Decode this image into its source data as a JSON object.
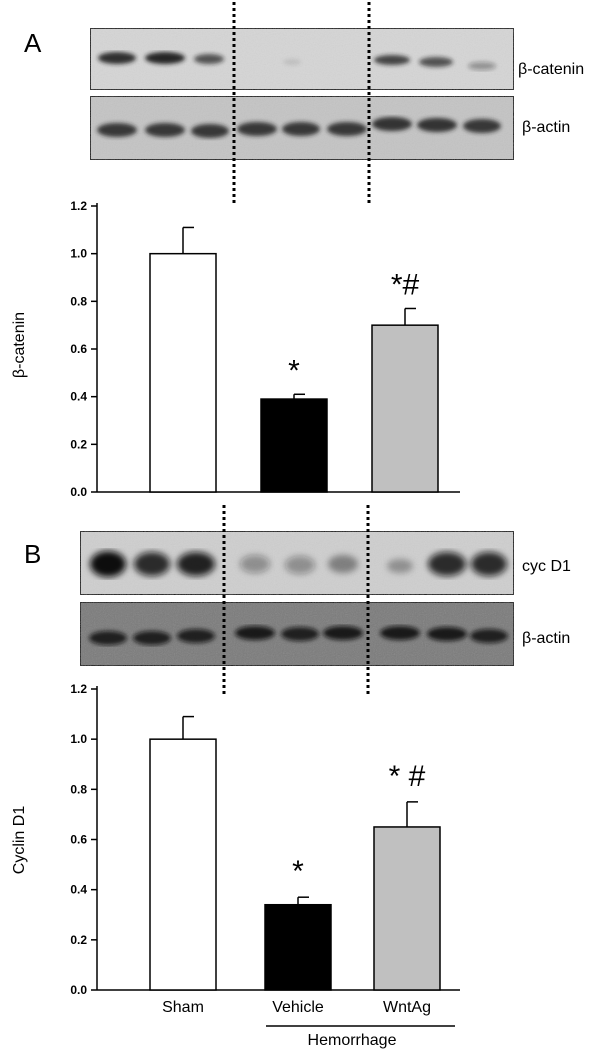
{
  "panels": [
    {
      "letter": "A",
      "blot_labels": [
        "β-catenin",
        "β-actin"
      ]
    },
    {
      "letter": "B",
      "blot_labels": [
        "cyc D1",
        "β-actin"
      ]
    }
  ],
  "x_group_label": "Hemorrhage",
  "colors": {
    "sham": "#ffffff",
    "vehicle": "#000000",
    "wntag": "#c0c0c0"
  },
  "chart_data": [
    {
      "type": "bar",
      "categories": [
        "Sham",
        "Vehicle",
        "WntAg"
      ],
      "values": [
        1.0,
        0.39,
        0.7
      ],
      "errors": [
        0.11,
        0.02,
        0.07
      ],
      "annotations": [
        "",
        "*",
        "*#"
      ],
      "ylabel": "β-catenin",
      "ylim": [
        0,
        1.2
      ],
      "yticks": [
        "0.0",
        "0.2",
        "0.4",
        "0.6",
        "0.8",
        "1.0",
        "1.2"
      ],
      "show_category_labels": false
    },
    {
      "type": "bar",
      "categories": [
        "Sham",
        "Vehicle",
        "WntAg"
      ],
      "values": [
        1.0,
        0.34,
        0.65
      ],
      "errors": [
        0.09,
        0.03,
        0.1
      ],
      "annotations": [
        "",
        "*",
        "* #"
      ],
      "ylabel": "Cyclin D1",
      "ylim": [
        0,
        1.2
      ],
      "yticks": [
        "0.0",
        "0.2",
        "0.4",
        "0.6",
        "0.8",
        "1.0",
        "1.2"
      ],
      "show_category_labels": true
    }
  ]
}
